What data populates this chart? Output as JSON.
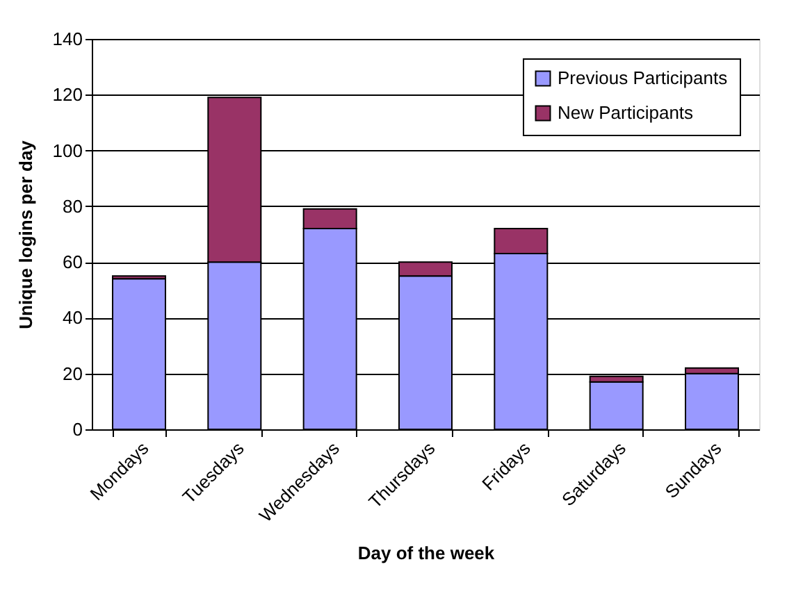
{
  "chart_data": {
    "type": "bar",
    "stacked": true,
    "xlabel": "Day of the week",
    "ylabel": "Unique logins per day",
    "categories": [
      "Mondays",
      "Tuesdays",
      "Wednesdays",
      "Thursdays",
      "Fridays",
      "Saturdays",
      "Sundays"
    ],
    "series": [
      {
        "name": "Previous Participants",
        "color": "#9999ff",
        "values": [
          54,
          60,
          72,
          55,
          63,
          17,
          20
        ]
      },
      {
        "name": "New Participants",
        "color": "#993366",
        "values": [
          1,
          59,
          7,
          5,
          9,
          2,
          2
        ]
      }
    ],
    "ylim": [
      0,
      140
    ],
    "yticks": [
      0,
      20,
      40,
      60,
      80,
      100,
      120,
      140
    ],
    "grid": "y",
    "legend": "top right"
  }
}
